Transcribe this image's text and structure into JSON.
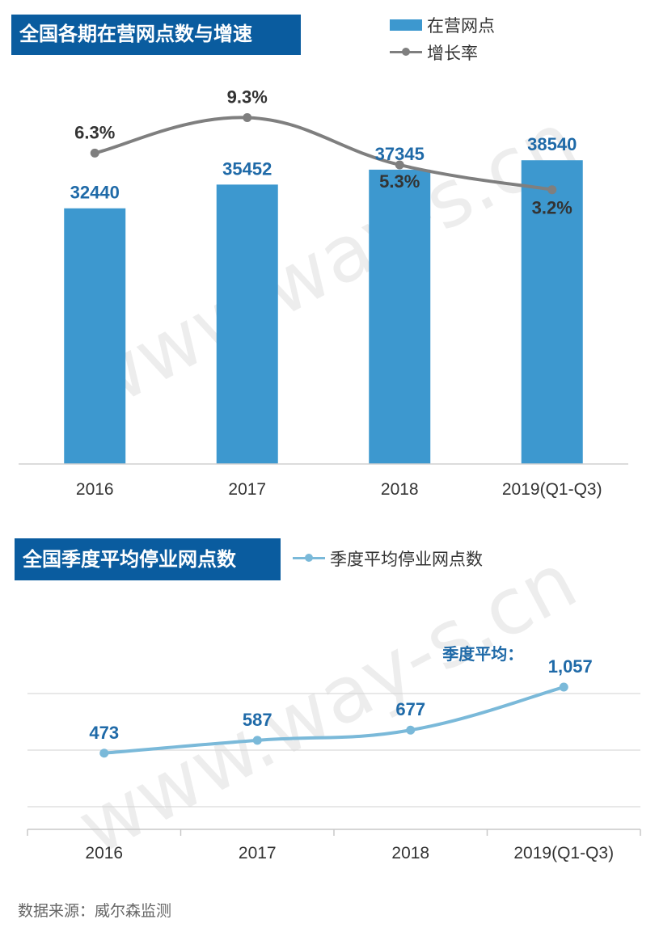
{
  "chart_data": [
    {
      "type": "bar+line",
      "title": "全国各期在营网点数与增速",
      "categories": [
        "2016",
        "2017",
        "2018",
        "2019(Q1-Q3)"
      ],
      "series": [
        {
          "name": "在营网点",
          "kind": "bar",
          "color": "#3d98cf",
          "values": [
            32440,
            35452,
            37345,
            38540
          ],
          "labels": [
            "32440",
            "35452",
            "37345",
            "38540"
          ]
        },
        {
          "name": "增长率",
          "kind": "line",
          "color": "#7f7f7f",
          "values": [
            6.3,
            9.3,
            5.3,
            3.2
          ],
          "labels": [
            "6.3%",
            "9.3%",
            "5.3%",
            "3.2%"
          ]
        }
      ],
      "ylim": [
        0,
        48000
      ],
      "y2lim": [
        -20,
        12
      ],
      "grid": false,
      "legend": "top-right"
    },
    {
      "type": "line",
      "title": "全国季度平均停业网点数",
      "categories": [
        "2016",
        "2017",
        "2018",
        "2019(Q1-Q3)"
      ],
      "series": [
        {
          "name": "季度平均停业网点数",
          "color": "#7ab9d9",
          "values": [
            473,
            587,
            677,
            1057
          ],
          "labels": [
            "473",
            "587",
            "677",
            "1,057"
          ]
        }
      ],
      "annotation": "季度平均：",
      "ylim": [
        -200,
        1400
      ],
      "grid": true,
      "legend": "top-right"
    }
  ],
  "watermark": "www.way-s.cn",
  "source": "数据来源：威尔森监测",
  "colors": {
    "title_bg": "#0a5c9f",
    "bar": "#3d98cf",
    "rate_line": "#7f7f7f",
    "closed_line": "#7ab9d9",
    "label_blue": "#1f6aa8",
    "label_dark": "#333333"
  }
}
